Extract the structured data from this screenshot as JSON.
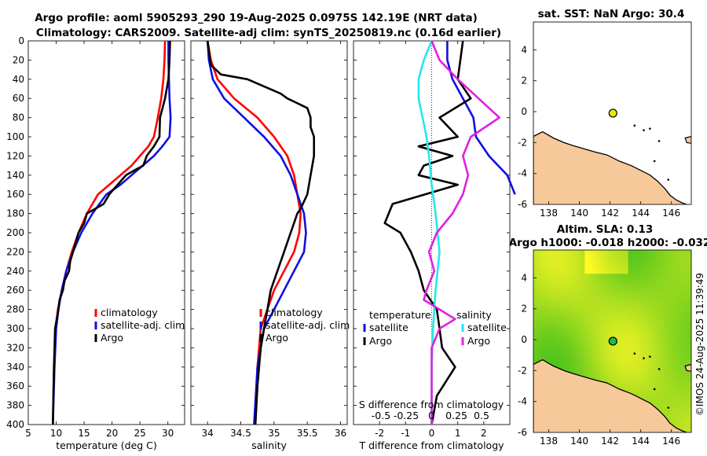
{
  "titles": {
    "line1": "Argo profile: aoml 5905293_290 19-Aug-2025 0.0975S 142.19E (NRT data)",
    "line2": "Climatology: CARS2009. Satellite-adj clim: synTS_20250819.nc (0.16d earlier)",
    "sst": "sat. SST: NaN Argo: 30.4",
    "sla1": "Altim. SLA: 0.13",
    "sla2": "Argo h1000: -0.018 h2000: -0.032",
    "watermark": "©IMOS 24-Aug-2025 11:39:49"
  },
  "colors": {
    "climatology": "#ff0000",
    "satellite": "#1010e0",
    "argo": "#000000",
    "salinity_satellite": "#22e8ee",
    "salinity_argo": "#e020e0",
    "land": "#f7c89a",
    "sea": "#ffffff"
  },
  "chart_data": [
    {
      "type": "line",
      "name": "temperature-profile",
      "xlabel": "temperature (deg C)",
      "ylabel": "",
      "xlim": [
        5,
        33
      ],
      "ylim": [
        400,
        0
      ],
      "xticks": [
        "5",
        "10",
        "15",
        "20",
        "25",
        "30"
      ],
      "yticks": [
        "0",
        "20",
        "40",
        "60",
        "80",
        "100",
        "120",
        "140",
        "160",
        "180",
        "200",
        "220",
        "240",
        "260",
        "280",
        "300",
        "320",
        "340",
        "360",
        "380",
        "400"
      ],
      "legend": [
        "climatology",
        "satellite-adj. clim",
        "Argo"
      ],
      "series": [
        {
          "name": "climatology",
          "x": [
            29.5,
            29.4,
            29.2,
            28.8,
            28.2,
            27.5,
            26.5,
            25,
            23.5,
            21.5,
            19.5,
            17.5,
            15.5,
            14,
            12.8,
            11.8,
            11,
            10.3,
            9.9,
            9.6,
            9.4
          ],
          "y": [
            0,
            20,
            40,
            60,
            80,
            100,
            110,
            120,
            130,
            140,
            150,
            160,
            180,
            200,
            220,
            240,
            260,
            280,
            300,
            340,
            400
          ]
        },
        {
          "name": "satellite-adj. clim",
          "x": [
            30.1,
            30.1,
            30.2,
            30.3,
            30.5,
            30.3,
            29,
            27.5,
            25.5,
            23.5,
            21.5,
            19,
            16.5,
            14.5,
            13,
            11.8,
            11,
            10.4,
            10,
            9.7,
            9.4
          ],
          "y": [
            0,
            20,
            40,
            60,
            80,
            100,
            110,
            120,
            130,
            140,
            150,
            160,
            180,
            200,
            220,
            240,
            260,
            280,
            300,
            340,
            400
          ]
        },
        {
          "name": "Argo",
          "x": [
            30.4,
            30.3,
            30.1,
            29.5,
            28.6,
            28.5,
            27.5,
            26.2,
            25.6,
            24,
            22.5,
            21,
            19.5,
            18.5,
            17,
            15.5,
            15,
            14,
            13.5,
            13,
            12.5,
            12.3,
            11.5,
            11.2,
            10.6,
            10.4,
            10.1,
            9.8,
            9.6,
            9.4
          ],
          "y": [
            0,
            20,
            40,
            60,
            80,
            100,
            110,
            120,
            130,
            135,
            140,
            150,
            160,
            170,
            175,
            180,
            190,
            200,
            210,
            220,
            230,
            240,
            250,
            260,
            270,
            280,
            290,
            300,
            340,
            400
          ]
        }
      ]
    },
    {
      "type": "line",
      "name": "salinity-profile",
      "xlabel": "salinity",
      "ylabel": "",
      "xlim": [
        33.75,
        36.1
      ],
      "ylim": [
        400,
        0
      ],
      "xticks": [
        "34",
        "34.5",
        "35",
        "35.5",
        "36"
      ],
      "legend": [
        "climatology",
        "satellite-adj. clim",
        "Argo"
      ],
      "series": [
        {
          "name": "climatology",
          "x": [
            34.0,
            34.05,
            34.15,
            34.4,
            34.75,
            35.0,
            35.2,
            35.3,
            35.35,
            35.4,
            35.38,
            35.3,
            35.15,
            35.0,
            34.9,
            34.8,
            34.75,
            34.72
          ],
          "y": [
            0,
            20,
            40,
            60,
            80,
            100,
            120,
            140,
            160,
            180,
            200,
            220,
            240,
            260,
            280,
            300,
            340,
            400
          ]
        },
        {
          "name": "satellite-adj. clim",
          "x": [
            34.0,
            34.02,
            34.08,
            34.25,
            34.55,
            34.85,
            35.1,
            35.25,
            35.35,
            35.45,
            35.48,
            35.45,
            35.3,
            35.15,
            35.0,
            34.85,
            34.75,
            34.7
          ],
          "y": [
            0,
            20,
            40,
            60,
            80,
            100,
            120,
            140,
            160,
            180,
            200,
            220,
            240,
            260,
            280,
            300,
            340,
            400
          ]
        },
        {
          "name": "Argo",
          "x": [
            34.0,
            34.05,
            34.2,
            34.6,
            35.1,
            35.2,
            35.5,
            35.55,
            35.55,
            35.6,
            35.6,
            35.55,
            35.5,
            35.4,
            35.35,
            35.25,
            35.15,
            35.05,
            34.95,
            34.9,
            34.85,
            34.8,
            34.75,
            34.72
          ],
          "y": [
            0,
            25,
            35,
            40,
            55,
            60,
            70,
            80,
            90,
            100,
            120,
            140,
            160,
            175,
            180,
            200,
            220,
            240,
            260,
            280,
            300,
            320,
            360,
            400
          ]
        }
      ]
    },
    {
      "type": "line",
      "name": "difference-profile",
      "xlabel": "T difference from climatology",
      "xlabel_top": "S difference from climatology",
      "xlim": [
        -3,
        3
      ],
      "ylim": [
        400,
        0
      ],
      "xticks": [
        "-2",
        "-1",
        "0",
        "1",
        "2"
      ],
      "xticks_top": [
        "-0.5",
        "-0.25",
        "0",
        "0.25",
        "0.5"
      ],
      "legend_temperature": {
        "header": "temperature",
        "items": [
          "satellite",
          "Argo"
        ]
      },
      "legend_salinity": {
        "header": "salinity",
        "items": [
          "satellite",
          "Argo"
        ]
      },
      "series": [
        {
          "name": "temperature-satellite",
          "x": [
            0.6,
            0.6,
            0.8,
            1.2,
            1.6,
            1.7,
            2.2,
            2.9,
            3.2
          ],
          "y": [
            0,
            20,
            40,
            60,
            80,
            100,
            120,
            140,
            160
          ]
        },
        {
          "name": "temperature-argo",
          "x": [
            1.2,
            1.1,
            1.0,
            1.5,
            0.3,
            1.0,
            -0.5,
            0.8,
            -0.3,
            -0.5,
            1.0,
            -1.5,
            -1.8,
            -1.2,
            -0.8,
            -0.5,
            -0.3,
            0.2,
            0.3,
            0.4,
            0.9,
            0.2,
            0.0
          ],
          "y": [
            0,
            20,
            40,
            60,
            80,
            100,
            110,
            120,
            130,
            140,
            150,
            170,
            190,
            200,
            220,
            240,
            260,
            280,
            300,
            320,
            340,
            370,
            400
          ]
        },
        {
          "name": "salinity-satellite",
          "x": [
            0.0,
            -0.3,
            -0.5,
            -0.5,
            -0.35,
            -0.2,
            -0.1,
            0.0,
            0.15,
            0.3,
            0.15,
            0.05,
            0.0,
            0.0
          ],
          "y": [
            0,
            20,
            40,
            60,
            80,
            100,
            120,
            150,
            180,
            220,
            260,
            300,
            340,
            400
          ]
        },
        {
          "name": "salinity-argo",
          "x": [
            0.0,
            0.3,
            1.0,
            1.8,
            2.6,
            1.5,
            1.2,
            1.4,
            1.2,
            0.8,
            0.2,
            -0.1,
            0.1,
            -0.2,
            -0.3,
            0.3,
            0.9,
            0.3,
            0.0,
            0.0,
            0.0
          ],
          "y": [
            0,
            20,
            40,
            60,
            80,
            100,
            120,
            140,
            160,
            180,
            200,
            220,
            240,
            260,
            270,
            280,
            290,
            300,
            320,
            360,
            400
          ]
        }
      ]
    },
    {
      "type": "map",
      "name": "sst-map",
      "xlim": [
        137,
        147.3
      ],
      "ylim": [
        -6,
        5.8
      ],
      "xticks": [
        "138",
        "140",
        "142",
        "144",
        "146"
      ],
      "yticks": [
        "4",
        "2",
        "0",
        "-2",
        "-4",
        "-6"
      ],
      "argo_position": {
        "lon": 142.19,
        "lat": -0.0975
      }
    },
    {
      "type": "heatmap",
      "name": "sla-map",
      "xlim": [
        137,
        147.3
      ],
      "ylim": [
        -6,
        5.8
      ],
      "xticks": [
        "138",
        "140",
        "142",
        "144",
        "146"
      ],
      "yticks": [
        "4",
        "2",
        "0",
        "-2",
        "-4",
        "-6"
      ],
      "argo_position": {
        "lon": 142.19,
        "lat": -0.0975
      }
    }
  ]
}
